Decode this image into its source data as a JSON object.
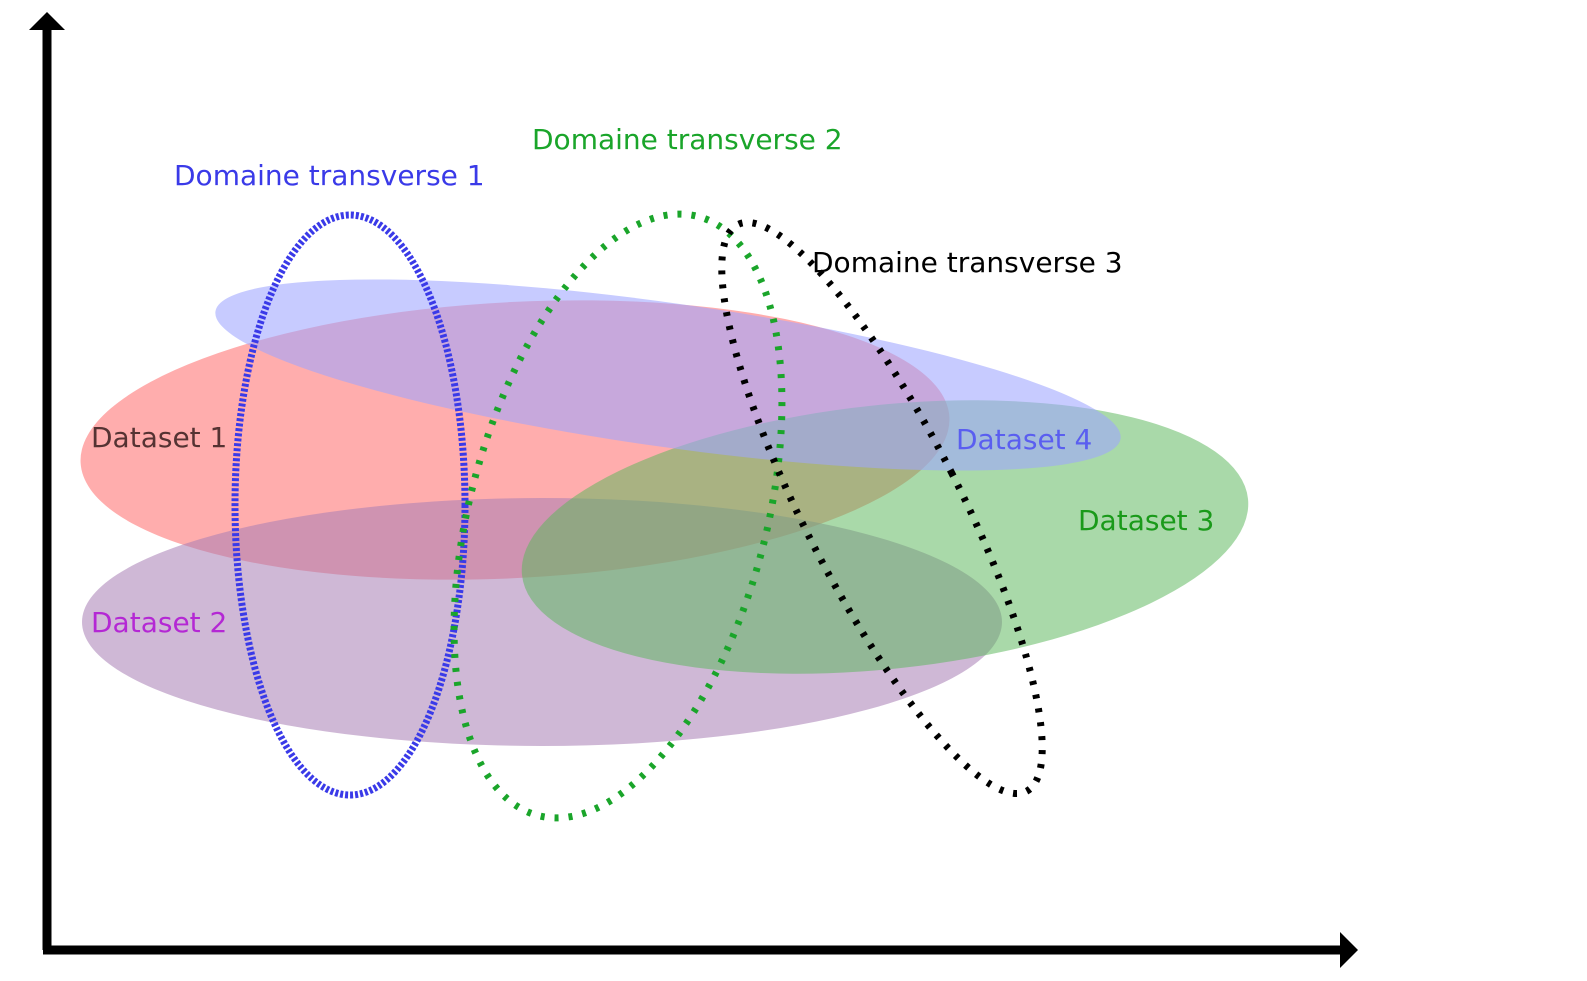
{
  "datasets": [
    {
      "label": "Dataset 1",
      "fill": "#ff5c5c",
      "text_color": "#553333"
    },
    {
      "label": "Dataset 2",
      "fill": "#a77db5",
      "text_color": "#b428d4"
    },
    {
      "label": "Dataset 3",
      "fill": "#5cb85c",
      "text_color": "#1a9a1a"
    },
    {
      "label": "Dataset 4",
      "fill": "#9ea6ff",
      "text_color": "#5a5ef0"
    }
  ],
  "domains": [
    {
      "label": "Domaine transverse 1",
      "color": "#3a3ae8"
    },
    {
      "label": "Domaine transverse 2",
      "color": "#1aa52a"
    },
    {
      "label": "Domaine transverse 3",
      "color": "#000000"
    }
  ],
  "axis_color": "#000000"
}
